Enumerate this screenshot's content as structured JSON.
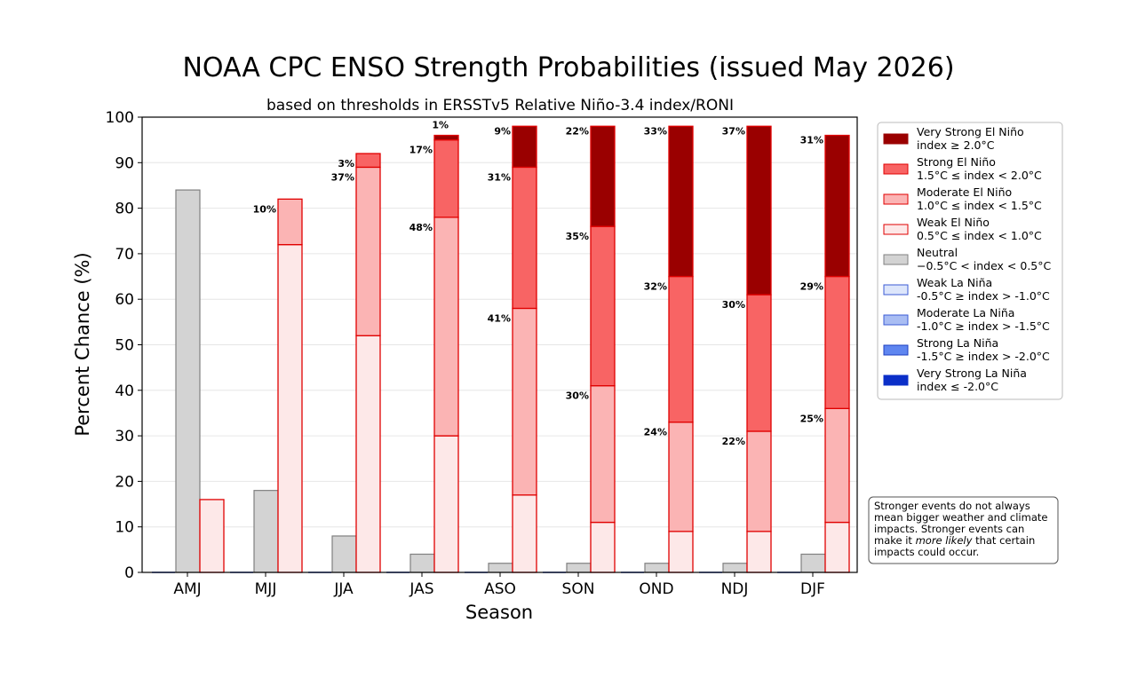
{
  "title": "NOAA CPC ENSO Strength Probabilities (issued May 2026)",
  "subtitle": "based on thresholds in ERSSTv5 Relative Niño-3.4 index/RONI",
  "chart_data": {
    "type": "bar",
    "title": "NOAA CPC ENSO Strength Probabilities (issued May 2026)",
    "subtitle": "based on thresholds in ERSSTv5 Relative Niño-3.4 index/RONI",
    "xlabel": "Season",
    "ylabel": "Percent Chance (%)",
    "ylim": [
      0,
      100
    ],
    "yticks": [
      "0",
      "10",
      "20",
      "30",
      "40",
      "50",
      "60",
      "70",
      "80",
      "90",
      "100"
    ],
    "categories": [
      "AMJ",
      "MJJ",
      "JJA",
      "JAS",
      "ASO",
      "SON",
      "OND",
      "NDJ",
      "DJF"
    ],
    "grid": "horizontal",
    "legend_position": "right",
    "bar_groups": {
      "neutral": {
        "name": "Neutral",
        "color": "#d3d3d3",
        "edge": "#808080",
        "values": [
          84,
          18,
          8,
          4,
          2,
          2,
          2,
          2,
          4
        ]
      },
      "la_nina_stacked": {
        "values": [
          0,
          0,
          0,
          0,
          0,
          0,
          0,
          0,
          0
        ]
      },
      "el_nino_stacked": [
        {
          "name": "Weak El Niño",
          "color": "#fde8e8",
          "values": [
            16,
            72,
            52,
            30,
            17,
            11,
            9,
            9,
            11
          ]
        },
        {
          "name": "Moderate El Niño",
          "color": "#fbb4b4",
          "values": [
            0,
            10,
            37,
            48,
            41,
            30,
            24,
            22,
            25
          ]
        },
        {
          "name": "Strong El Niño",
          "color": "#f86464",
          "values": [
            0,
            0,
            3,
            17,
            31,
            35,
            32,
            30,
            29
          ]
        },
        {
          "name": "Very Strong El Niño",
          "color": "#9a0000",
          "values": [
            0,
            0,
            0,
            1,
            9,
            22,
            33,
            37,
            31
          ]
        }
      ]
    },
    "bar_labels": [
      {
        "category": "MJJ",
        "segment": 1,
        "text": "10%"
      },
      {
        "category": "JJA",
        "segment": 1,
        "text": "37%"
      },
      {
        "category": "JJA",
        "segment": 2,
        "text": "3%"
      },
      {
        "category": "JAS",
        "segment": 1,
        "text": "48%"
      },
      {
        "category": "JAS",
        "segment": 2,
        "text": "17%"
      },
      {
        "category": "JAS",
        "segment": 3,
        "text": "1%"
      },
      {
        "category": "ASO",
        "segment": 1,
        "text": "41%"
      },
      {
        "category": "ASO",
        "segment": 2,
        "text": "31%"
      },
      {
        "category": "ASO",
        "segment": 3,
        "text": "9%"
      },
      {
        "category": "SON",
        "segment": 1,
        "text": "30%"
      },
      {
        "category": "SON",
        "segment": 2,
        "text": "35%"
      },
      {
        "category": "SON",
        "segment": 3,
        "text": "22%"
      },
      {
        "category": "OND",
        "segment": 1,
        "text": "24%"
      },
      {
        "category": "OND",
        "segment": 2,
        "text": "32%"
      },
      {
        "category": "OND",
        "segment": 3,
        "text": "33%"
      },
      {
        "category": "NDJ",
        "segment": 1,
        "text": "22%"
      },
      {
        "category": "NDJ",
        "segment": 2,
        "text": "30%"
      },
      {
        "category": "NDJ",
        "segment": 3,
        "text": "37%"
      },
      {
        "category": "DJF",
        "segment": 1,
        "text": "25%"
      },
      {
        "category": "DJF",
        "segment": 2,
        "text": "29%"
      },
      {
        "category": "DJF",
        "segment": 3,
        "text": "31%"
      }
    ]
  },
  "legend": [
    {
      "name": "Very Strong El Niño",
      "range": "index ≥ 2.0°C",
      "color": "#9a0000",
      "edge": "#9a0000"
    },
    {
      "name": "Strong El Niño",
      "range": "1.5°C ≤ index < 2.0°C",
      "color": "#f86464",
      "edge": "#e00000"
    },
    {
      "name": "Moderate El Niño",
      "range": "1.0°C ≤ index < 1.5°C",
      "color": "#fbb4b4",
      "edge": "#e00000"
    },
    {
      "name": "Weak El Niño",
      "range": "0.5°C ≤ index < 1.0°C",
      "color": "#fde8e8",
      "edge": "#e00000"
    },
    {
      "name": "Neutral",
      "range": "−0.5°C < index < 0.5°C",
      "color": "#d3d3d3",
      "edge": "#808080"
    },
    {
      "name": "Weak La Niña",
      "range": "-0.5°C ≥ index > -1.0°C",
      "color": "#dde6fb",
      "edge": "#3b5bd6"
    },
    {
      "name": "Moderate La Niña",
      "range": "-1.0°C ≥ index > -1.5°C",
      "color": "#a9bdf3",
      "edge": "#3b5bd6"
    },
    {
      "name": "Strong La Niña",
      "range": "-1.5°C ≥ index > -2.0°C",
      "color": "#5f86f0",
      "edge": "#1c3fbf"
    },
    {
      "name": "Very Strong La Niña",
      "range": "index ≤ -2.0°C",
      "color": "#0b2fc8",
      "edge": "#0b2fc8"
    }
  ],
  "note": {
    "line1": "Stronger events do not always",
    "line2": "mean bigger weather and climate",
    "line3": "impacts. Stronger events can",
    "line4_prefix": "make it ",
    "line4_italic": "more likely",
    "line4_suffix": " that certain",
    "line5": "impacts could occur."
  }
}
